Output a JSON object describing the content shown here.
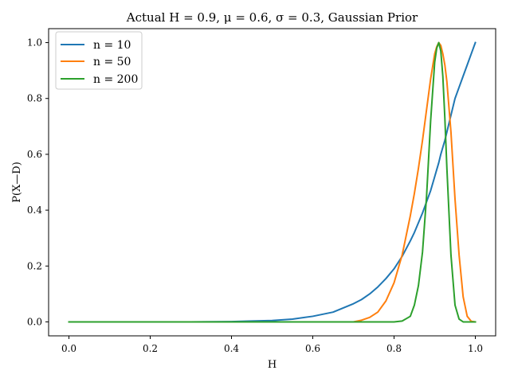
{
  "chart_data": {
    "type": "line",
    "title": "Actual H = 0.9, μ = 0.6, σ = 0.3, Gaussian Prior",
    "xlabel": "H",
    "ylabel": "P(X—D)",
    "xlim": [
      -0.05,
      1.05
    ],
    "ylim": [
      -0.05,
      1.05
    ],
    "x_ticks": [
      0.0,
      0.2,
      0.4,
      0.6,
      0.8,
      1.0
    ],
    "x_tick_labels": [
      "0.0",
      "0.2",
      "0.4",
      "0.6",
      "0.8",
      "1.0"
    ],
    "y_ticks": [
      0.0,
      0.2,
      0.4,
      0.6,
      0.8,
      1.0
    ],
    "y_tick_labels": [
      "0.0",
      "0.2",
      "0.4",
      "0.6",
      "0.8",
      "1.0"
    ],
    "grid": false,
    "legend_position": "top-left",
    "x": [
      0.0,
      0.1,
      0.2,
      0.3,
      0.4,
      0.45,
      0.5,
      0.55,
      0.6,
      0.65,
      0.7,
      0.72,
      0.74,
      0.76,
      0.78,
      0.8,
      0.82,
      0.84,
      0.85,
      0.86,
      0.87,
      0.88,
      0.89,
      0.9,
      0.905,
      0.91,
      0.915,
      0.92,
      0.925,
      0.93,
      0.94,
      0.95,
      0.96,
      0.97,
      0.98,
      0.99,
      1.0
    ],
    "series": [
      {
        "name": "n = 10",
        "color": "#1f77b4",
        "values": [
          0.0,
          0.0,
          0.0,
          0.0,
          0.001,
          0.003,
          0.005,
          0.01,
          0.02,
          0.035,
          0.065,
          0.08,
          0.1,
          0.125,
          0.155,
          0.19,
          0.235,
          0.29,
          0.32,
          0.355,
          0.39,
          0.43,
          0.47,
          0.52,
          0.545,
          0.57,
          0.6,
          0.625,
          0.65,
          0.68,
          0.74,
          0.8,
          0.84,
          0.88,
          0.92,
          0.96,
          1.0
        ]
      },
      {
        "name": "n = 50",
        "color": "#ff7f0e",
        "values": [
          0.0,
          0.0,
          0.0,
          0.0,
          0.0,
          0.0,
          0.0,
          0.0,
          0.0,
          0.0,
          0.0,
          0.006,
          0.016,
          0.035,
          0.075,
          0.14,
          0.24,
          0.38,
          0.46,
          0.55,
          0.65,
          0.76,
          0.87,
          0.96,
          0.985,
          1.0,
          0.99,
          0.96,
          0.92,
          0.86,
          0.68,
          0.44,
          0.24,
          0.09,
          0.02,
          0.002,
          0.0
        ]
      },
      {
        "name": "n = 200",
        "color": "#2ca02c",
        "values": [
          0.0,
          0.0,
          0.0,
          0.0,
          0.0,
          0.0,
          0.0,
          0.0,
          0.0,
          0.0,
          0.0,
          0.0,
          0.0,
          0.0,
          0.0,
          0.0,
          0.003,
          0.02,
          0.06,
          0.13,
          0.25,
          0.45,
          0.72,
          0.93,
          0.98,
          1.0,
          0.97,
          0.88,
          0.73,
          0.55,
          0.24,
          0.06,
          0.01,
          0.0,
          0.0,
          0.0,
          0.0
        ]
      }
    ]
  }
}
